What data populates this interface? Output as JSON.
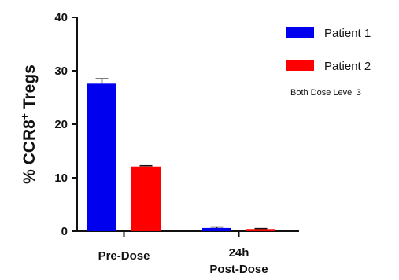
{
  "chart_data": {
    "type": "bar",
    "categories": [
      "Pre-Dose",
      "24h\nPost-Dose"
    ],
    "series": [
      {
        "name": "Patient 1",
        "color": "#0000ee",
        "values": [
          27.6,
          0.6
        ],
        "errors": [
          0.9,
          0.2
        ]
      },
      {
        "name": "Patient 2",
        "color": "#ff0000",
        "values": [
          12.1,
          0.4
        ],
        "errors": [
          0.15,
          0.1
        ]
      }
    ],
    "ylabel": {
      "prefix": "% CCR8",
      "superscript": "+",
      "suffix": " Tregs"
    },
    "ylim": [
      0,
      40
    ],
    "yticks": [
      0,
      10,
      20,
      30,
      40
    ],
    "annotation": "Both Dose Level 3",
    "legend_position": "right",
    "grid": false
  }
}
